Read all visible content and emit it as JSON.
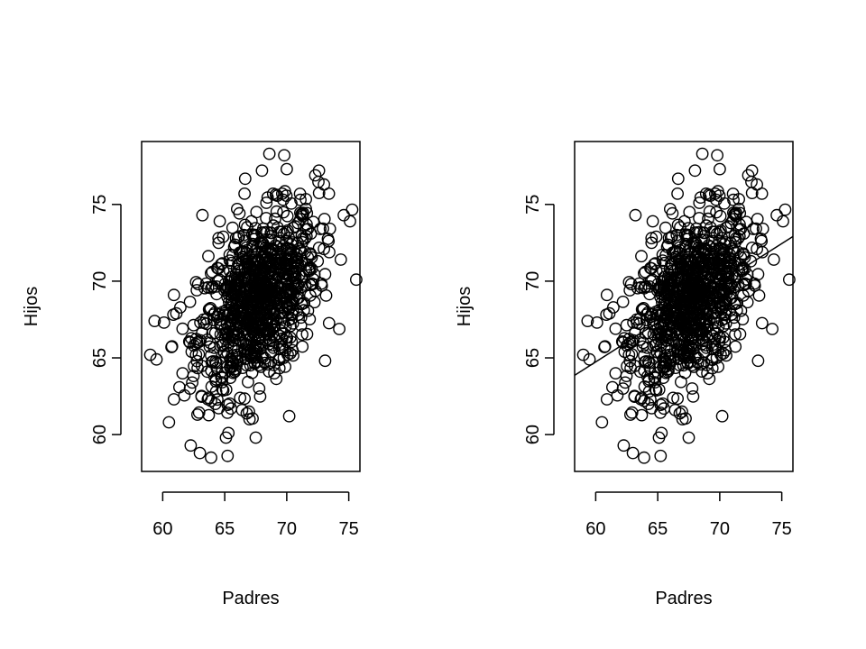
{
  "chart_data": [
    {
      "type": "scatter",
      "title": "",
      "xlabel": "Padres",
      "ylabel": "Hijos",
      "xlim": [
        58.3,
        75.9
      ],
      "ylim": [
        57.6,
        79.1
      ],
      "x_ticks": [
        60,
        65,
        70,
        75
      ],
      "y_ticks": [
        60,
        65,
        70,
        75
      ],
      "x_tick_labels": [
        "60",
        "65",
        "70",
        "75"
      ],
      "y_tick_labels": [
        "60",
        "65",
        "70",
        "75"
      ],
      "grid": false,
      "regression_line": null,
      "point_color": "#000000",
      "x": [
        59.0,
        59.5,
        60.1,
        60.5,
        60.9,
        61.1,
        61.6,
        62.2,
        62.8,
        63.0,
        63.2,
        63.9,
        64.3,
        64.6,
        65.1,
        65.3,
        66.0,
        66.4,
        67.0,
        67.5,
        68.0,
        68.6,
        69.0,
        69.8,
        70.2,
        71.1,
        71.6,
        72.3,
        72.6,
        73.0,
        73.4,
        74.6,
        75.1,
        75.6,
        63.7,
        63.9,
        65.5,
        66.6,
        68.9,
        70.0,
        64.5,
        64.5,
        60.9,
        61.6,
        62.2,
        63.3,
        64.9,
        66.1,
        67.3,
        68.4,
        69.6,
        70.8,
        71.9,
        73.0,
        62.5,
        65.0,
        67.5,
        70.0,
        72.5,
        64.0,
        66.0,
        68.0,
        70.0,
        72.0,
        65.0,
        67.0,
        69.0,
        71.0,
        66.0,
        68.0,
        70.0
      ],
      "y": [
        65.2,
        64.9,
        67.3,
        60.8,
        62.3,
        67.9,
        64.0,
        63.0,
        61.3,
        58.8,
        74.3,
        58.5,
        63.6,
        73.9,
        59.8,
        60.1,
        74.7,
        61.6,
        61.0,
        59.8,
        77.2,
        78.3,
        64.0,
        78.2,
        61.2,
        75.3,
        73.7,
        76.9,
        77.2,
        76.3,
        75.7,
        74.3,
        73.9,
        70.1,
        62.4,
        62.2,
        61.7,
        75.7,
        75.7,
        77.3,
        72.5,
        72.8,
        69.1,
        66.9,
        66.0,
        67.5,
        65.4,
        67.3,
        68.7,
        69.4,
        70.7,
        71.3,
        71.8,
        72.1,
        65.8,
        67.9,
        69.0,
        70.5,
        71.3,
        66.6,
        68.1,
        69.1,
        70.0,
        70.8,
        66.6,
        68.3,
        69.3,
        70.4,
        67.4,
        68.9,
        70.1
      ]
    },
    {
      "type": "scatter",
      "title": "",
      "xlabel": "Padres",
      "ylabel": "Hijos",
      "xlim": [
        58.3,
        75.9
      ],
      "ylim": [
        57.6,
        79.1
      ],
      "x_ticks": [
        60,
        65,
        70,
        75
      ],
      "y_ticks": [
        60,
        65,
        70,
        75
      ],
      "x_tick_labels": [
        "60",
        "65",
        "70",
        "75"
      ],
      "y_tick_labels": [
        "60",
        "65",
        "70",
        "75"
      ],
      "grid": false,
      "regression_line": {
        "intercept": 33.9,
        "slope": 0.514
      },
      "point_color": "#000000",
      "x": [
        59.0,
        59.5,
        60.1,
        60.5,
        60.9,
        61.1,
        61.6,
        62.2,
        62.8,
        63.0,
        63.2,
        63.9,
        64.3,
        64.6,
        65.1,
        65.3,
        66.0,
        66.4,
        67.0,
        67.5,
        68.0,
        68.6,
        69.0,
        69.8,
        70.2,
        71.1,
        71.6,
        72.3,
        72.6,
        73.0,
        73.4,
        74.6,
        75.1,
        75.6,
        63.7,
        63.9,
        65.5,
        66.6,
        68.9,
        70.0,
        64.5,
        64.5,
        60.9,
        61.6,
        62.2,
        63.3,
        64.9,
        66.1,
        67.3,
        68.4,
        69.6,
        70.8,
        71.9,
        73.0,
        62.5,
        65.0,
        67.5,
        70.0,
        72.5,
        64.0,
        66.0,
        68.0,
        70.0,
        72.0,
        65.0,
        67.0,
        69.0,
        71.0,
        66.0,
        68.0,
        70.0
      ],
      "y": [
        65.2,
        64.9,
        67.3,
        60.8,
        62.3,
        67.9,
        64.0,
        63.0,
        61.3,
        58.8,
        74.3,
        58.5,
        63.6,
        73.9,
        59.8,
        60.1,
        74.7,
        61.6,
        61.0,
        59.8,
        77.2,
        78.3,
        64.0,
        78.2,
        61.2,
        75.3,
        73.7,
        76.9,
        77.2,
        76.3,
        75.7,
        74.3,
        73.9,
        70.1,
        62.4,
        62.2,
        61.7,
        75.7,
        75.7,
        77.3,
        72.5,
        72.8,
        69.1,
        66.9,
        66.0,
        67.5,
        65.4,
        67.3,
        68.7,
        69.4,
        70.7,
        71.3,
        71.8,
        72.1,
        65.8,
        67.9,
        69.0,
        70.5,
        71.3,
        66.6,
        68.1,
        69.1,
        70.0,
        70.8,
        66.6,
        68.3,
        69.3,
        70.4,
        67.4,
        68.9,
        70.1
      ]
    }
  ]
}
